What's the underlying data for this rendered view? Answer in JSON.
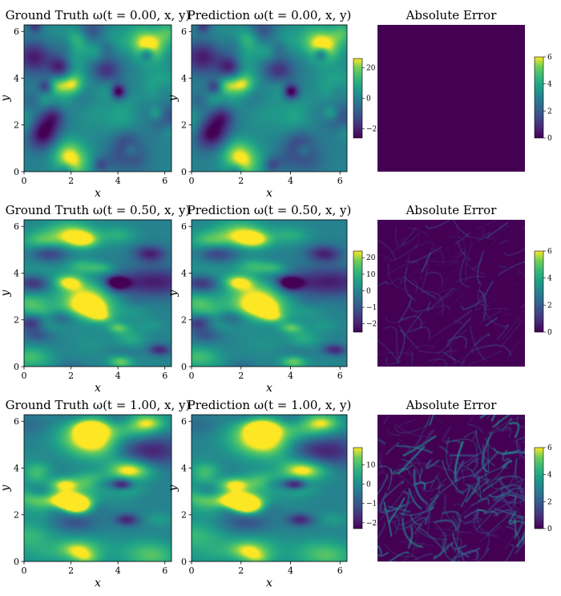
{
  "figure": {
    "rows": [
      {
        "time": "0.00",
        "titles": {
          "ground_truth": "Ground Truth ω(t = 0.00, x, y)",
          "prediction": "Prediction ω(t = 0.00, x, y)",
          "error": "Absolute Error"
        },
        "field_colorbar": {
          "ticks": [
            "20",
            "0",
            "−20"
          ],
          "tick_values": [
            20,
            0,
            -20
          ],
          "range": [
            -26,
            26
          ]
        },
        "error_colorbar": {
          "ticks": [
            "6",
            "4",
            "2",
            "0"
          ],
          "tick_values": [
            6,
            4,
            2,
            0
          ],
          "range": [
            0,
            6
          ]
        },
        "error_level": "near-zero"
      },
      {
        "time": "0.50",
        "titles": {
          "ground_truth": "Ground Truth ω(t = 0.50, x, y)",
          "prediction": "Prediction ω(t = 0.50, x, y)",
          "error": "Absolute Error"
        },
        "field_colorbar": {
          "ticks": [
            "20",
            "10",
            "0",
            "−10",
            "−20"
          ],
          "tick_values": [
            20,
            10,
            0,
            -10,
            -20
          ],
          "range": [
            -25,
            24
          ]
        },
        "error_colorbar": {
          "ticks": [
            "6",
            "4",
            "2",
            "0"
          ],
          "tick_values": [
            6,
            4,
            2,
            0
          ],
          "range": [
            0,
            6
          ]
        },
        "error_level": "low"
      },
      {
        "time": "1.00",
        "titles": {
          "ground_truth": "Ground Truth ω(t = 1.00, x, y)",
          "prediction": "Prediction ω(t = 1.00, x, y)",
          "error": "Absolute Error"
        },
        "field_colorbar": {
          "ticks": [
            "10",
            "0",
            "−10",
            "−20"
          ],
          "tick_values": [
            10,
            0,
            -10,
            -20
          ],
          "range": [
            -23,
            19
          ]
        },
        "error_colorbar": {
          "ticks": [
            "6",
            "4",
            "2",
            "0"
          ],
          "tick_values": [
            6,
            4,
            2,
            0
          ],
          "range": [
            0,
            6
          ]
        },
        "error_level": "moderate"
      }
    ],
    "x_ticks": [
      "0",
      "2",
      "4",
      "6"
    ],
    "y_ticks": [
      "0",
      "2",
      "4",
      "6"
    ],
    "x_label": "x",
    "y_label": "y",
    "colormap": "viridis"
  },
  "chart_data": {
    "type": "heatmap",
    "domain": {
      "x": [
        0,
        6.2832
      ],
      "y": [
        0,
        6.2832
      ]
    },
    "xlabel": "x",
    "ylabel": "y",
    "tick_values": [
      0,
      2,
      4,
      6
    ],
    "colormap": "viridis",
    "times": [
      0.0,
      0.5,
      1.0
    ],
    "panels_per_row": [
      "ground truth",
      "prediction",
      "absolute error"
    ],
    "field_color_range": [
      [
        -26,
        26
      ],
      [
        -25,
        24
      ],
      [
        -23,
        19
      ]
    ],
    "error_color_range": [
      0,
      6
    ]
  }
}
